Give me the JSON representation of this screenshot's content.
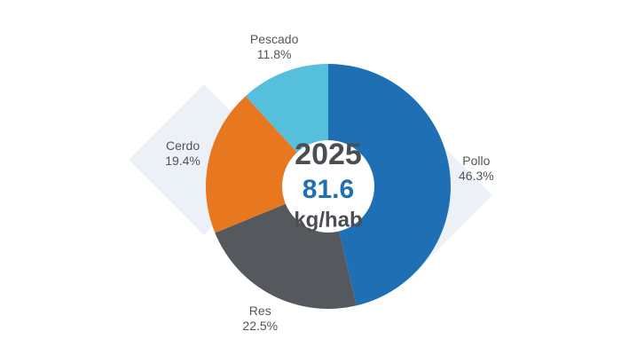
{
  "chart_data": {
    "type": "donut",
    "categories": [
      "Pollo",
      "Res",
      "Cerdo",
      "Pescado"
    ],
    "values": [
      46.3,
      22.5,
      19.4,
      11.8
    ],
    "value_labels": [
      "46.3%",
      "22.5%",
      "19.4%",
      "11.8%"
    ],
    "colors": [
      "#1f6fb4",
      "#55585d",
      "#e8781f",
      "#56bfdc"
    ],
    "center": {
      "year": "2025",
      "total": 81.6,
      "unit": "kg/hab"
    }
  }
}
